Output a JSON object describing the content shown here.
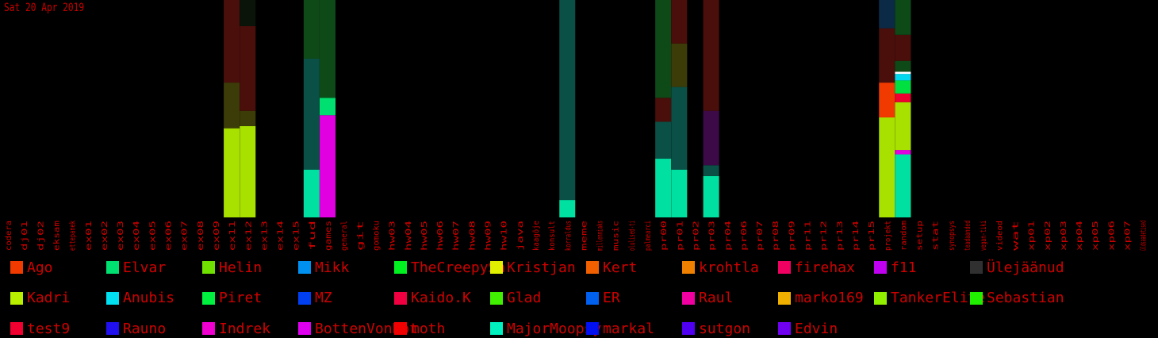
{
  "date_label": "Sat 20 Apr 2019",
  "chart_data": {
    "type": "bar",
    "stacked": true,
    "title": "",
    "xlabel": "",
    "ylabel": "",
    "ylim": [
      0,
      100
    ],
    "grid": false,
    "categories": [
      "codera",
      "dj01",
      "dj02",
      "eksam",
      "ettepanek",
      "ex01",
      "ex02",
      "ex03",
      "ex04",
      "ex05",
      "ex06",
      "ex07",
      "ex08",
      "ex09",
      "ex11",
      "ex12",
      "ex13",
      "ex14",
      "ex15",
      "fud",
      "games",
      "general",
      "git",
      "gomoku",
      "hw03",
      "hw04",
      "hw05",
      "hw06",
      "hw07",
      "hw08",
      "hw09",
      "hw10",
      "java",
      "kaagõje",
      "konsult",
      "korraldus",
      "meme",
      "millenniaks",
      "music",
      "olulised-ti",
      "palmearci",
      "pr00",
      "pr01",
      "pr02",
      "pr03",
      "pr04",
      "pr06",
      "pr07",
      "pr08",
      "pr09",
      "pr11",
      "pr12",
      "pr13",
      "pr14",
      "pr15",
      "projekt",
      "random",
      "setup",
      "stat",
      "synopsys",
      "teadaanded",
      "vegan-tiki",
      "videod",
      "wat",
      "xp01",
      "xp02",
      "xp03",
      "xp04",
      "xp05",
      "xp06",
      "xp07",
      "üldsaadetised"
    ],
    "bars": [
      {
        "category": "ex11",
        "segments": [
          {
            "color": "#a8e000",
            "value": 41
          },
          {
            "color": "#3c3c08",
            "value": 21
          },
          {
            "color": "#4a0f0a",
            "value": 38
          }
        ]
      },
      {
        "category": "ex12",
        "segments": [
          {
            "color": "#a8e000",
            "value": 42
          },
          {
            "color": "#3c3c08",
            "value": 7
          },
          {
            "color": "#4a0f0a",
            "value": 39
          },
          {
            "color": "#0a1408",
            "value": 12
          }
        ]
      },
      {
        "category": "fud",
        "segments": [
          {
            "color": "#00e0a0",
            "value": 22
          },
          {
            "color": "#0a5046",
            "value": 51
          },
          {
            "color": "#0e4a18",
            "value": 27
          }
        ]
      },
      {
        "category": "games",
        "segments": [
          {
            "color": "#e000e0",
            "value": 47
          },
          {
            "color": "#00e070",
            "value": 8
          },
          {
            "color": "#0e4a18",
            "value": 45
          }
        ]
      },
      {
        "category": "korraldus",
        "segments": [
          {
            "color": "#00e0a0",
            "value": 8
          },
          {
            "color": "#0a5046",
            "value": 92
          }
        ]
      },
      {
        "category": "pr00",
        "segments": [
          {
            "color": "#00e0a0",
            "value": 27
          },
          {
            "color": "#0a5046",
            "value": 17
          },
          {
            "color": "#4a0f0a",
            "value": 11
          },
          {
            "color": "#0e4a18",
            "value": 45
          }
        ]
      },
      {
        "category": "pr01",
        "segments": [
          {
            "color": "#00e0a0",
            "value": 22
          },
          {
            "color": "#0a5046",
            "value": 38
          },
          {
            "color": "#3c3c08",
            "value": 20
          },
          {
            "color": "#4a0f0a",
            "value": 20
          }
        ]
      },
      {
        "category": "pr03",
        "segments": [
          {
            "color": "#00e0a0",
            "value": 19
          },
          {
            "color": "#0a5046",
            "value": 5
          },
          {
            "color": "#3c0a46",
            "value": 25
          },
          {
            "color": "#4a0f0a",
            "value": 51
          }
        ]
      },
      {
        "category": "projekt",
        "segments": [
          {
            "color": "#a8e000",
            "value": 46
          },
          {
            "color": "#f03a00",
            "value": 16
          },
          {
            "color": "#4a0f0a",
            "value": 25
          },
          {
            "color": "#0a2a46",
            "value": 13
          }
        ]
      },
      {
        "category": "random",
        "segments": [
          {
            "color": "#00e0a0",
            "value": 29
          },
          {
            "color": "#e000e0",
            "value": 2
          },
          {
            "color": "#a8e000",
            "value": 22
          },
          {
            "color": "#f00030",
            "value": 4
          },
          {
            "color": "#00e040",
            "value": 6
          },
          {
            "color": "#00d8f0",
            "value": 3
          },
          {
            "color": "#ffffff",
            "value": 1
          },
          {
            "color": "#0e4a18",
            "value": 5
          },
          {
            "color": "#4a0f0a",
            "value": 12
          },
          {
            "color": "#0e4a18",
            "value": 16
          }
        ]
      }
    ],
    "legend": [
      {
        "name": "Ago",
        "color": "#f03a00"
      },
      {
        "name": "Elvar",
        "color": "#00e070"
      },
      {
        "name": "Helin",
        "color": "#70e000"
      },
      {
        "name": "Mikk",
        "color": "#0090f0"
      },
      {
        "name": "TheCreepySh",
        "color": "#00f020"
      },
      {
        "name": "Kristjan",
        "color": "#e0f000"
      },
      {
        "name": "Kert",
        "color": "#f06000"
      },
      {
        "name": "krohtla",
        "color": "#f08000"
      },
      {
        "name": "firehax",
        "color": "#f00060"
      },
      {
        "name": "f11",
        "color": "#c000f0"
      },
      {
        "name": "Ülejäänud",
        "color": "#303030"
      },
      {
        "name": "Kadri",
        "color": "#b8f000"
      },
      {
        "name": "Anubis",
        "color": "#00e0f0"
      },
      {
        "name": "Piret",
        "color": "#00f040"
      },
      {
        "name": "MZ",
        "color": "#0040f0"
      },
      {
        "name": "Kaido.K",
        "color": "#f00040"
      },
      {
        "name": "Glad",
        "color": "#40f000"
      },
      {
        "name": "ER",
        "color": "#0060f0"
      },
      {
        "name": "Raul",
        "color": "#f000a0"
      },
      {
        "name": "marko169",
        "color": "#f0b000"
      },
      {
        "name": "TankerElite",
        "color": "#90f000"
      },
      {
        "name": "Sebastian",
        "color": "#20f000"
      },
      {
        "name": "test9",
        "color": "#f00030"
      },
      {
        "name": "Rauno",
        "color": "#2010f0"
      },
      {
        "name": "Indrek",
        "color": "#f000d0"
      },
      {
        "name": "BottenVonBot",
        "color": "#e000f0"
      },
      {
        "name": "moth",
        "color": "#f00000"
      },
      {
        "name": "MajorMoopsy",
        "color": "#00f0c0"
      },
      {
        "name": "markal",
        "color": "#0010f0"
      },
      {
        "name": "sutgon",
        "color": "#5000f0"
      },
      {
        "name": "Edvin",
        "color": "#7000f0"
      }
    ]
  }
}
